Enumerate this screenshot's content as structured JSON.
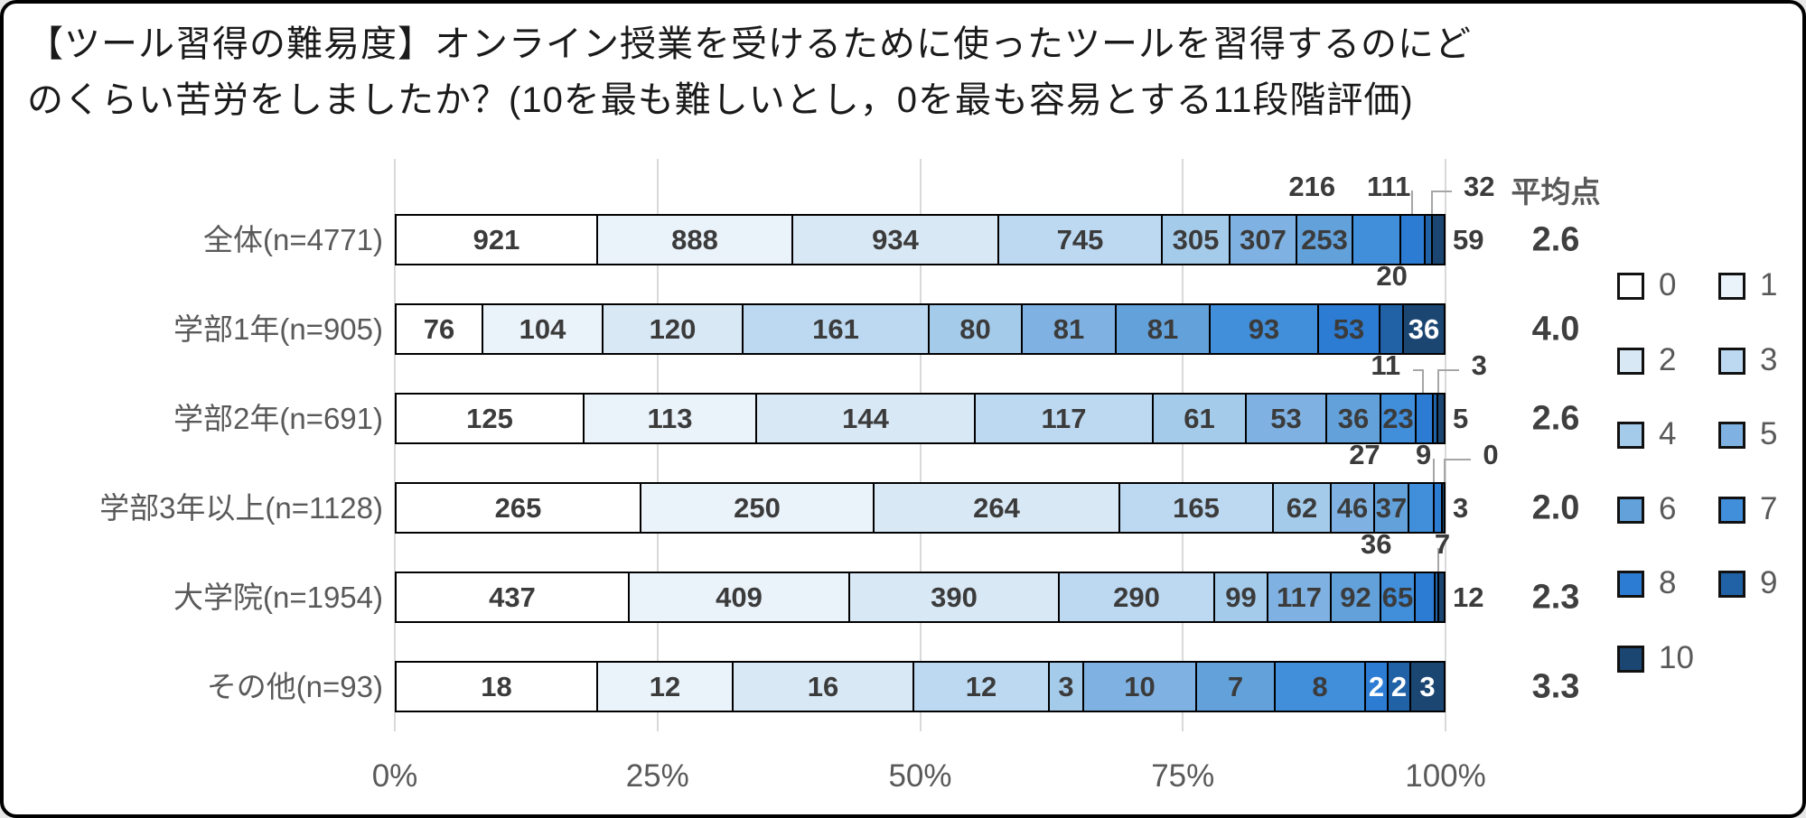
{
  "title": {
    "line1": "【ツール習得の難易度】オンライン授業を受けるために使ったツールを習得するのにど",
    "line2": "のくらい苦労をしましたか？(10を最も難しいとし，0を最も容易とする11段階評価)"
  },
  "chart_data": {
    "type": "bar",
    "variant": "horizontal-100%-stacked",
    "title": "【ツール習得の難易度】オンライン授業を受けるために使ったツールを習得するのにどのくらい苦労をしましたか？(10を最も難しいとし，0を最も容易とする11段階評価)",
    "legend_labels": [
      "0",
      "1",
      "2",
      "3",
      "4",
      "5",
      "6",
      "7",
      "8",
      "9",
      "10"
    ],
    "legend_position": "right",
    "palette": [
      "#FFFFFF",
      "#EAF2FA",
      "#D9E8F5",
      "#BDD9F1",
      "#A5CBEB",
      "#7FB2E2",
      "#63A1DB",
      "#418EDA",
      "#2C7CD4",
      "#2162A7",
      "#1C4672"
    ],
    "gridline_color": "#d9d9d9",
    "x_axis_ticks": [
      "0%",
      "25%",
      "50%",
      "75%",
      "100%"
    ],
    "x_axis_range_pct": [
      0,
      100
    ],
    "average_header": "平均点",
    "rows": [
      {
        "label": "全体(n=4771)",
        "n": 4771,
        "average": "2.6",
        "values": [
          921,
          888,
          934,
          745,
          305,
          307,
          253,
          216,
          111,
          32,
          59
        ],
        "placements": [
          "in",
          "in",
          "in",
          "in",
          "in",
          "in",
          "in",
          "co",
          "co",
          "co",
          "right"
        ],
        "callouts": [
          {
            "index": 7,
            "text": "216",
            "x_pct": 87.3,
            "conn_pct": null
          },
          {
            "index": 8,
            "text": "111",
            "x_pct": 94.6,
            "conn_pct": 96.9
          },
          {
            "index": 9,
            "text": "32",
            "x_pct": 103.2,
            "conn_pct": 98.6
          }
        ],
        "right_label": "59"
      },
      {
        "label": "学部1年(n=905)",
        "n": 905,
        "average": "4.0",
        "values": [
          76,
          104,
          120,
          161,
          80,
          81,
          81,
          93,
          53,
          20,
          36
        ],
        "placements": [
          "in",
          "in",
          "in",
          "in",
          "in",
          "in",
          "in",
          "in",
          "in",
          "co",
          "inw"
        ],
        "callouts": [
          {
            "index": 9,
            "text": "20",
            "x_pct": 94.9,
            "conn_pct": null
          }
        ],
        "right_label": null
      },
      {
        "label": "学部2年(n=691)",
        "n": 691,
        "average": "2.6",
        "values": [
          125,
          113,
          144,
          117,
          61,
          53,
          36,
          23,
          11,
          3,
          5
        ],
        "placements": [
          "in",
          "in",
          "in",
          "in",
          "in",
          "in",
          "in",
          "in",
          "co",
          "co",
          "right"
        ],
        "callouts": [
          {
            "index": 8,
            "text": "11",
            "x_pct": 94.3,
            "conn_pct": 97.9
          },
          {
            "index": 9,
            "text": "3",
            "x_pct": 103.2,
            "conn_pct": 99.2
          }
        ],
        "right_label": "5"
      },
      {
        "label": "学部3年以上(n=1128)",
        "n": 1128,
        "average": "2.0",
        "values": [
          265,
          250,
          264,
          165,
          62,
          46,
          37,
          27,
          9,
          0,
          3
        ],
        "placements": [
          "in",
          "in",
          "in",
          "in",
          "in",
          "in",
          "in",
          "co",
          "co",
          "co",
          "right"
        ],
        "callouts": [
          {
            "index": 7,
            "text": "27",
            "x_pct": 92.3,
            "conn_pct": null
          },
          {
            "index": 8,
            "text": "9",
            "x_pct": 97.9,
            "conn_pct": 99.0
          },
          {
            "index": 9,
            "text": "0",
            "x_pct": 104.3,
            "conn_pct": 99.8
          }
        ],
        "right_label": "3"
      },
      {
        "label": "大学院(n=1954)",
        "n": 1954,
        "average": "2.3",
        "values": [
          437,
          409,
          390,
          290,
          99,
          117,
          92,
          65,
          36,
          7,
          12
        ],
        "placements": [
          "in",
          "in",
          "in",
          "in",
          "in",
          "in",
          "in",
          "in",
          "co",
          "co",
          "right"
        ],
        "callouts": [
          {
            "index": 8,
            "text": "36",
            "x_pct": 93.4,
            "conn_pct": null
          },
          {
            "index": 9,
            "text": "7",
            "x_pct": 99.7,
            "conn_pct": 99.2
          }
        ],
        "right_label": "12"
      },
      {
        "label": "その他(n=93)",
        "n": 93,
        "average": "3.3",
        "values": [
          18,
          12,
          16,
          12,
          3,
          10,
          7,
          8,
          2,
          2,
          3
        ],
        "placements": [
          "in",
          "in",
          "in",
          "in",
          "in",
          "in",
          "in",
          "in",
          "inw",
          "inw",
          "inw"
        ],
        "callouts": [],
        "right_label": null
      }
    ]
  }
}
